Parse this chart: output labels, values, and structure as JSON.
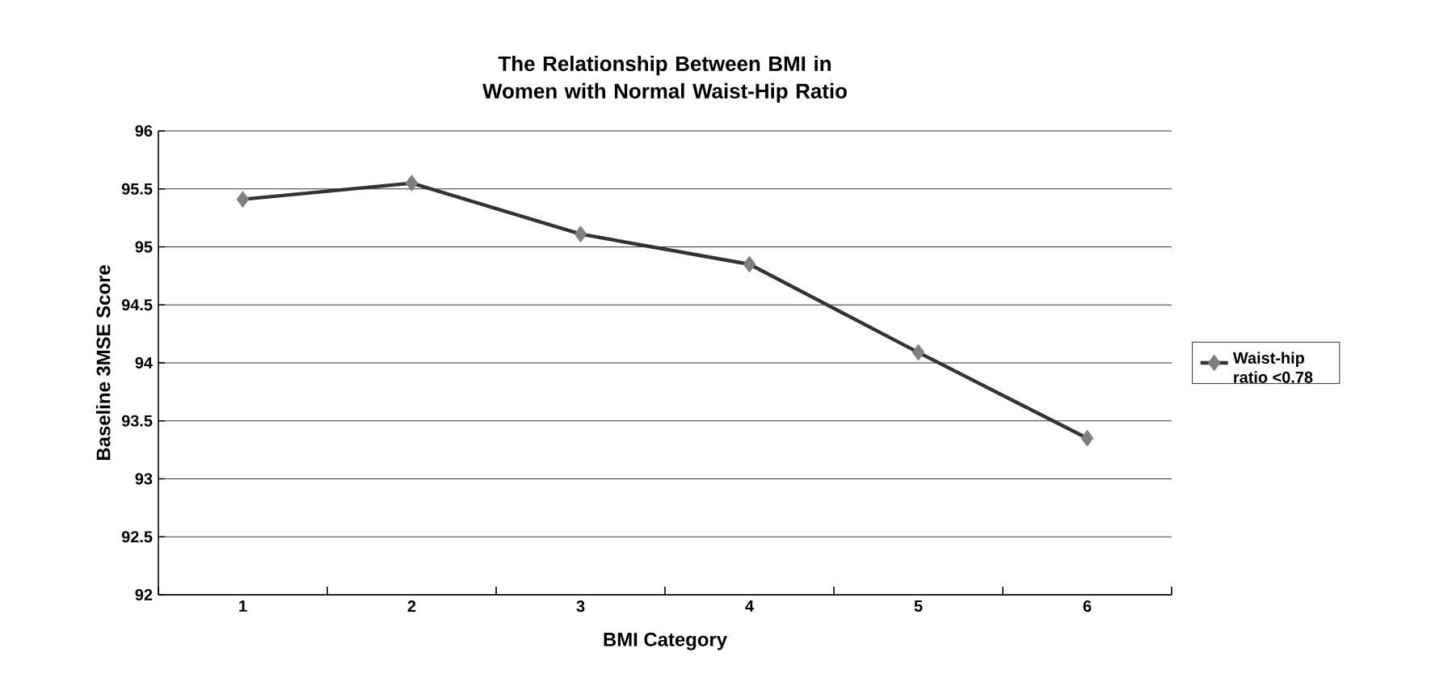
{
  "chart_data": {
    "type": "line",
    "title": "The Relationship Between BMI in Women with Normal Waist-Hip Ratio",
    "xlabel": "BMI Category",
    "ylabel": "Baseline 3MSE Score",
    "categories": [
      "1",
      "2",
      "3",
      "4",
      "5",
      "6"
    ],
    "series": [
      {
        "name": "Waist-hip ratio <0.78",
        "color": "#333333",
        "values": [
          95.41,
          95.55,
          95.11,
          94.85,
          94.09,
          93.35
        ]
      }
    ],
    "ylim": [
      92,
      96
    ],
    "yticks": [
      92,
      92.5,
      93,
      93.5,
      94,
      94.5,
      95,
      95.5,
      96
    ],
    "grid": "y",
    "legend": "right",
    "marker": "diamond",
    "line_style": "solid"
  }
}
